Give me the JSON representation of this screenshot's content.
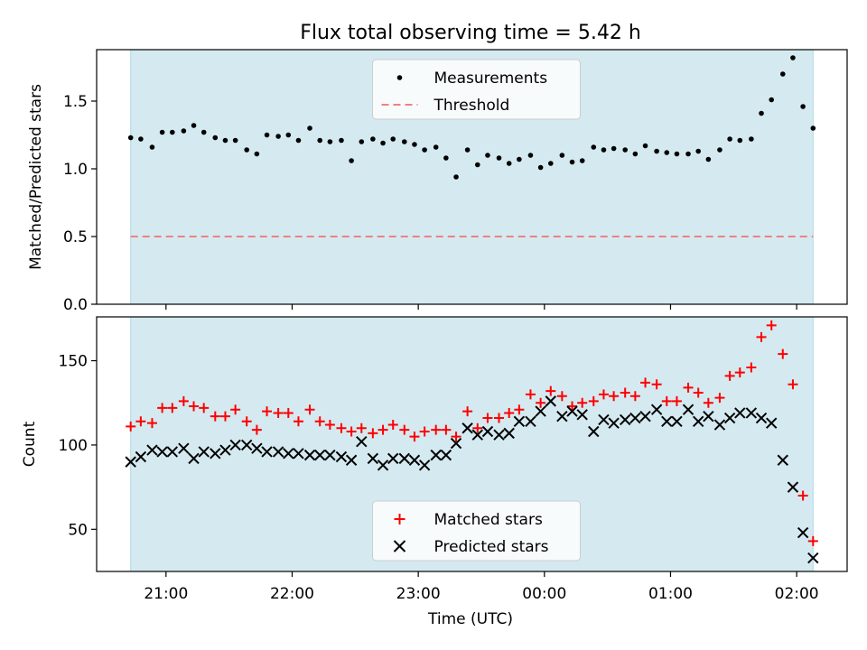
{
  "title": "Flux total observing time = 5.42 h",
  "xlabel": "Time (UTC)",
  "xticks": [
    "21:00",
    "22:00",
    "23:00",
    "00:00",
    "01:00",
    "02:00"
  ],
  "colors": {
    "background_span": "#d4eaf0",
    "span_edge": "#add8e6",
    "threshold": "#f08080",
    "matched": "#ff0000",
    "predicted": "#000000",
    "measurements": "#000000"
  },
  "chart_data": [
    {
      "type": "scatter",
      "ylabel": "Matched/Predicted stars",
      "yticks": [
        "0.0",
        "0.5",
        "1.0",
        "1.5"
      ],
      "ylim": [
        0,
        1.88
      ],
      "x_unit": "hours since 20:00 UTC",
      "xlim": [
        20.45,
        26.4
      ],
      "shaded_span": [
        20.72,
        26.13
      ],
      "legend": {
        "placement": "upper center",
        "entries": [
          "Measurements",
          "Threshold"
        ]
      },
      "threshold": {
        "name": "Threshold",
        "value": 0.5,
        "style": "dashed"
      },
      "series": [
        {
          "name": "Measurements",
          "marker": "dot",
          "x": [
            20.72,
            20.8,
            20.89,
            20.97,
            21.05,
            21.14,
            21.22,
            21.3,
            21.39,
            21.47,
            21.55,
            21.64,
            21.72,
            21.8,
            21.89,
            21.97,
            22.05,
            22.14,
            22.22,
            22.3,
            22.39,
            22.47,
            22.55,
            22.64,
            22.72,
            22.8,
            22.89,
            22.97,
            23.05,
            23.14,
            23.22,
            23.3,
            23.39,
            23.47,
            23.55,
            23.64,
            23.72,
            23.8,
            23.89,
            23.97,
            24.05,
            24.14,
            24.22,
            24.3,
            24.39,
            24.47,
            24.55,
            24.64,
            24.72,
            24.8,
            24.89,
            24.97,
            25.05,
            25.14,
            25.22,
            25.3,
            25.39,
            25.47,
            25.55,
            25.64,
            25.72,
            25.8,
            25.89,
            25.97,
            26.05,
            26.13
          ],
          "y": [
            1.23,
            1.22,
            1.16,
            1.27,
            1.27,
            1.28,
            1.32,
            1.27,
            1.23,
            1.21,
            1.21,
            1.14,
            1.11,
            1.25,
            1.24,
            1.25,
            1.21,
            1.3,
            1.21,
            1.2,
            1.21,
            1.06,
            1.2,
            1.22,
            1.19,
            1.22,
            1.2,
            1.18,
            1.14,
            1.16,
            1.08,
            0.94,
            1.14,
            1.03,
            1.1,
            1.08,
            1.04,
            1.07,
            1.1,
            1.01,
            1.04,
            1.1,
            1.05,
            1.06,
            1.16,
            1.14,
            1.15,
            1.14,
            1.11,
            1.17,
            1.13,
            1.12,
            1.11,
            1.11,
            1.13,
            1.07,
            1.14,
            1.22,
            1.21,
            1.22,
            1.41,
            1.51,
            1.7,
            1.82,
            1.46,
            1.3
          ]
        }
      ]
    },
    {
      "type": "scatter",
      "ylabel": "Count",
      "yticks": [
        "50",
        "100",
        "150"
      ],
      "ylim": [
        25,
        176
      ],
      "x_unit": "hours since 20:00 UTC",
      "xlim": [
        20.45,
        26.4
      ],
      "shaded_span": [
        20.72,
        26.13
      ],
      "legend": {
        "placement": "lower center",
        "entries": [
          "Matched stars",
          "Predicted stars"
        ]
      },
      "series": [
        {
          "name": "Matched stars",
          "marker": "plus",
          "x": [
            20.72,
            20.8,
            20.89,
            20.97,
            21.05,
            21.14,
            21.22,
            21.3,
            21.39,
            21.47,
            21.55,
            21.64,
            21.72,
            21.8,
            21.89,
            21.97,
            22.05,
            22.14,
            22.22,
            22.3,
            22.39,
            22.47,
            22.55,
            22.64,
            22.72,
            22.8,
            22.89,
            22.97,
            23.05,
            23.14,
            23.22,
            23.3,
            23.39,
            23.47,
            23.55,
            23.64,
            23.72,
            23.8,
            23.89,
            23.97,
            24.05,
            24.14,
            24.22,
            24.3,
            24.39,
            24.47,
            24.55,
            24.64,
            24.72,
            24.8,
            24.89,
            24.97,
            25.05,
            25.14,
            25.22,
            25.3,
            25.39,
            25.47,
            25.55,
            25.64,
            25.72,
            25.8,
            25.89,
            25.97,
            26.05,
            26.13
          ],
          "y": [
            111,
            114,
            113,
            122,
            122,
            126,
            123,
            122,
            117,
            117,
            121,
            114,
            109,
            120,
            119,
            119,
            114,
            121,
            114,
            112,
            110,
            108,
            110,
            107,
            109,
            112,
            109,
            105,
            108,
            109,
            109,
            105,
            120,
            110,
            116,
            116,
            119,
            121,
            130,
            125,
            132,
            129,
            123,
            125,
            126,
            130,
            129,
            131,
            129,
            137,
            136,
            126,
            126,
            134,
            131,
            125,
            128,
            141,
            143,
            146,
            164,
            171,
            154,
            136,
            70,
            43
          ]
        },
        {
          "name": "Predicted stars",
          "marker": "x",
          "x": [
            20.72,
            20.8,
            20.89,
            20.97,
            21.05,
            21.14,
            21.22,
            21.3,
            21.39,
            21.47,
            21.55,
            21.64,
            21.72,
            21.8,
            21.89,
            21.97,
            22.05,
            22.14,
            22.22,
            22.3,
            22.39,
            22.47,
            22.55,
            22.64,
            22.72,
            22.8,
            22.89,
            22.97,
            23.05,
            23.14,
            23.22,
            23.3,
            23.39,
            23.47,
            23.55,
            23.64,
            23.72,
            23.8,
            23.89,
            23.97,
            24.05,
            24.14,
            24.22,
            24.3,
            24.39,
            24.47,
            24.55,
            24.64,
            24.72,
            24.8,
            24.89,
            24.97,
            25.05,
            25.14,
            25.22,
            25.3,
            25.39,
            25.47,
            25.55,
            25.64,
            25.72,
            25.8,
            25.89,
            25.97,
            26.05,
            26.13
          ],
          "y": [
            90,
            93,
            97,
            96,
            96,
            98,
            92,
            96,
            95,
            97,
            100,
            100,
            98,
            96,
            96,
            95,
            95,
            94,
            94,
            94,
            93,
            91,
            102,
            92,
            88,
            92,
            92,
            91,
            88,
            94,
            94,
            101,
            110,
            106,
            108,
            106,
            107,
            114,
            114,
            120,
            126,
            117,
            120,
            118,
            108,
            115,
            113,
            115,
            116,
            117,
            121,
            114,
            114,
            121,
            114,
            117,
            112,
            116,
            119,
            119,
            116,
            113,
            91,
            75,
            48,
            33
          ]
        }
      ]
    }
  ]
}
